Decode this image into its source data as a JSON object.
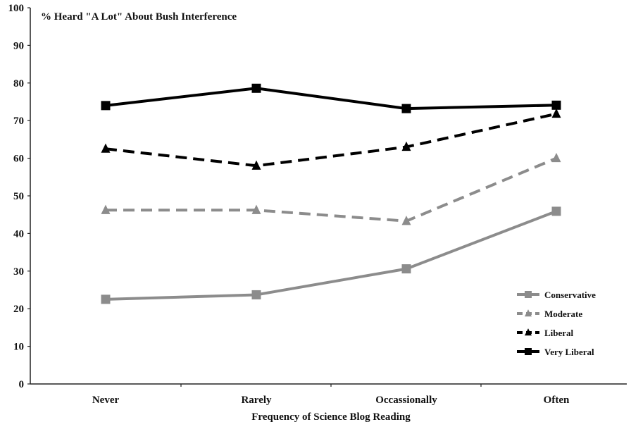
{
  "chart_data": {
    "type": "line",
    "title": "% Heard \"A Lot\" About Bush Interference",
    "xlabel": "Frequency of Science Blog Reading",
    "ylabel": "",
    "ylim": [
      0,
      100
    ],
    "yticks": [
      "0",
      "10",
      "20",
      "30",
      "40",
      "50",
      "60",
      "70",
      "80",
      "90",
      "100"
    ],
    "categories": [
      "Never",
      "Rarely",
      "Occassionally",
      "Often"
    ],
    "grid": false,
    "legend_position": "bottom-right",
    "series": [
      {
        "name": "Conservative",
        "values": [
          22.5,
          23.7,
          30.6,
          45.9
        ],
        "color": "#8c8c8c",
        "dash": "solid",
        "marker": "square"
      },
      {
        "name": "Moderate",
        "values": [
          46.2,
          46.2,
          43.3,
          60.0
        ],
        "color": "#8c8c8c",
        "dash": "dashed",
        "marker": "triangle"
      },
      {
        "name": "Liberal",
        "values": [
          62.5,
          58.0,
          63.0,
          71.8
        ],
        "color": "#000000",
        "dash": "dashed",
        "marker": "triangle"
      },
      {
        "name": "Very Liberal",
        "values": [
          74.0,
          78.6,
          73.2,
          74.1
        ],
        "color": "#000000",
        "dash": "solid",
        "marker": "square"
      }
    ]
  }
}
